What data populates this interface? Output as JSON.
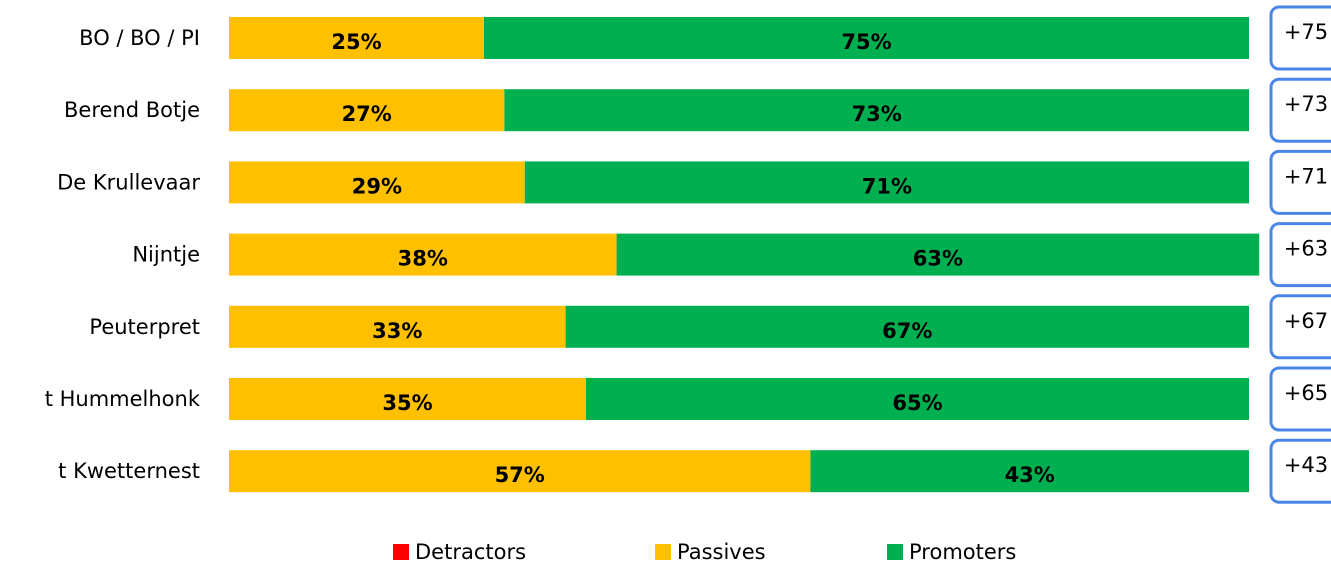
{
  "chart_data": {
    "type": "bar",
    "orientation": "horizontal",
    "stacked": true,
    "categories": [
      "BO / BO / PI",
      "Berend Botje",
      "De Krullevaar",
      "Nijntje",
      "Peuterpret",
      "t Hummelhonk",
      "t Kwetternest"
    ],
    "series": [
      {
        "name": "Detractors",
        "color": "#ff0000",
        "values": [
          0,
          0,
          0,
          0,
          0,
          0,
          0
        ]
      },
      {
        "name": "Passives",
        "color": "#ffc000",
        "values": [
          25,
          27,
          29,
          38,
          33,
          35,
          57
        ],
        "value_labels": [
          "25%",
          "27%",
          "29%",
          "38%",
          "33%",
          "35%",
          "57%"
        ]
      },
      {
        "name": "Promoters",
        "color": "#00b050",
        "values": [
          75,
          73,
          71,
          63,
          67,
          65,
          43
        ],
        "value_labels": [
          "75%",
          "73%",
          "71%",
          "63%",
          "67%",
          "65%",
          "43%"
        ]
      }
    ],
    "scores": {
      "values": [
        75,
        73,
        71,
        63,
        67,
        65,
        43
      ],
      "value_labels": [
        "+75",
        "+73",
        "+71",
        "+63",
        "+67",
        "+65",
        "+43"
      ],
      "color": "#4a86e8"
    },
    "xlim": [
      0,
      100
    ],
    "legend": "bottom"
  }
}
